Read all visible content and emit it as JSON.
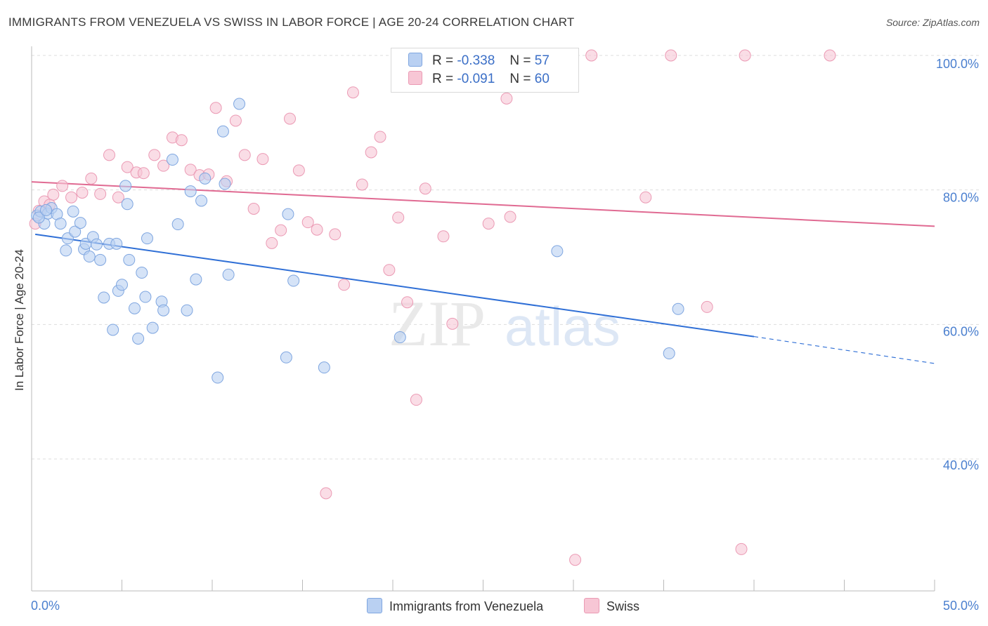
{
  "title": "IMMIGRANTS FROM VENEZUELA VS SWISS IN LABOR FORCE | AGE 20-24 CORRELATION CHART",
  "source": "Source: ZipAtlas.com",
  "watermark": {
    "zip": "ZIP",
    "atlas": "atlas"
  },
  "legend": {
    "r_label": "R =",
    "n_label": "N =",
    "rows": [
      {
        "r": "-0.338",
        "n": "57"
      },
      {
        "r": "-0.091",
        "n": "60"
      }
    ]
  },
  "colors": {
    "blue_fill": "#b9d0f2",
    "blue_stroke": "#7fa6e0",
    "blue_line": "#2f6fd6",
    "pink_fill": "#f7c6d5",
    "pink_stroke": "#eb9ab4",
    "pink_line": "#e06a92",
    "tick_text": "#4a7fcf",
    "grid": "#dddddd"
  },
  "chart_data": {
    "type": "scatter",
    "title": "IMMIGRANTS FROM VENEZUELA VS SWISS IN LABOR FORCE | AGE 20-24 CORRELATION CHART",
    "xlabel": "",
    "ylabel": "In Labor Force | Age 20-24",
    "xlim": [
      0,
      50
    ],
    "ylim": [
      22,
      102
    ],
    "x_tick_labels": [
      "0.0%",
      "50.0%"
    ],
    "y_ticks": [
      40,
      60,
      80,
      100
    ],
    "y_tick_labels": [
      "40.0%",
      "60.0%",
      "80.0%",
      "100.0%"
    ],
    "grid": "horizontal dashed",
    "legend_position": "top-center",
    "series": [
      {
        "name": "Immigrants from Venezuela",
        "color": "#b9d0f2",
        "trend": {
          "x1": 0.2,
          "y1": 73.4,
          "x2": 40,
          "y2": 58.2,
          "dash_to_x": 50,
          "dash_to_y": 54.2
        },
        "points": [
          [
            0.3,
            76.2
          ],
          [
            0.5,
            76.8
          ],
          [
            0.7,
            75.0
          ],
          [
            0.9,
            76.5
          ],
          [
            1.1,
            77.3
          ],
          [
            1.4,
            76.4
          ],
          [
            1.6,
            75.0
          ],
          [
            1.9,
            71.0
          ],
          [
            2.0,
            72.8
          ],
          [
            2.3,
            76.8
          ],
          [
            2.4,
            73.8
          ],
          [
            2.7,
            75.1
          ],
          [
            2.9,
            71.2
          ],
          [
            3.0,
            72.0
          ],
          [
            3.2,
            70.1
          ],
          [
            3.4,
            73.0
          ],
          [
            3.6,
            71.9
          ],
          [
            3.8,
            69.6
          ],
          [
            4.0,
            64.0
          ],
          [
            4.3,
            72.0
          ],
          [
            4.5,
            59.2
          ],
          [
            4.7,
            72.0
          ],
          [
            4.8,
            65.0
          ],
          [
            5.0,
            65.9
          ],
          [
            5.2,
            80.6
          ],
          [
            5.3,
            77.9
          ],
          [
            5.4,
            69.6
          ],
          [
            5.7,
            62.4
          ],
          [
            5.9,
            57.9
          ],
          [
            6.1,
            67.7
          ],
          [
            6.3,
            64.1
          ],
          [
            6.4,
            72.8
          ],
          [
            6.7,
            59.5
          ],
          [
            7.2,
            63.4
          ],
          [
            7.3,
            62.1
          ],
          [
            7.8,
            84.5
          ],
          [
            8.1,
            74.9
          ],
          [
            8.6,
            62.1
          ],
          [
            8.8,
            79.8
          ],
          [
            9.1,
            66.7
          ],
          [
            9.4,
            78.4
          ],
          [
            9.6,
            81.7
          ],
          [
            10.3,
            52.1
          ],
          [
            10.6,
            88.7
          ],
          [
            10.7,
            80.9
          ],
          [
            10.9,
            67.4
          ],
          [
            11.5,
            92.8
          ],
          [
            14.1,
            55.1
          ],
          [
            14.2,
            76.4
          ],
          [
            14.5,
            66.5
          ],
          [
            16.2,
            53.6
          ],
          [
            20.4,
            58.1
          ],
          [
            29.1,
            70.9
          ],
          [
            35.3,
            55.7
          ],
          [
            35.8,
            62.3
          ],
          [
            0.4,
            75.9
          ],
          [
            0.8,
            77.0
          ]
        ]
      },
      {
        "name": "Swiss",
        "color": "#f7c6d5",
        "trend": {
          "x1": 0,
          "y1": 81.2,
          "x2": 50,
          "y2": 74.6
        },
        "points": [
          [
            0.2,
            75.0
          ],
          [
            0.4,
            76.9
          ],
          [
            0.7,
            78.3
          ],
          [
            1.0,
            77.8
          ],
          [
            1.2,
            79.3
          ],
          [
            1.7,
            80.6
          ],
          [
            2.2,
            78.9
          ],
          [
            2.8,
            79.6
          ],
          [
            3.3,
            81.7
          ],
          [
            3.8,
            79.4
          ],
          [
            4.3,
            85.2
          ],
          [
            4.8,
            78.9
          ],
          [
            5.3,
            83.4
          ],
          [
            5.8,
            82.6
          ],
          [
            6.2,
            82.5
          ],
          [
            6.8,
            85.2
          ],
          [
            7.3,
            83.6
          ],
          [
            7.8,
            87.8
          ],
          [
            8.3,
            87.4
          ],
          [
            8.8,
            83.0
          ],
          [
            9.3,
            82.2
          ],
          [
            9.8,
            82.3
          ],
          [
            10.2,
            92.2
          ],
          [
            10.8,
            81.3
          ],
          [
            11.3,
            90.3
          ],
          [
            11.8,
            85.2
          ],
          [
            12.3,
            77.2
          ],
          [
            12.8,
            84.6
          ],
          [
            13.3,
            72.1
          ],
          [
            13.8,
            74.0
          ],
          [
            14.3,
            90.6
          ],
          [
            14.8,
            82.9
          ],
          [
            15.3,
            75.2
          ],
          [
            15.8,
            74.1
          ],
          [
            16.3,
            34.9
          ],
          [
            16.8,
            73.4
          ],
          [
            17.3,
            65.9
          ],
          [
            17.8,
            94.5
          ],
          [
            18.3,
            80.8
          ],
          [
            18.8,
            85.6
          ],
          [
            19.3,
            87.9
          ],
          [
            19.8,
            68.1
          ],
          [
            20.3,
            75.9
          ],
          [
            20.8,
            63.3
          ],
          [
            21.3,
            48.8
          ],
          [
            21.8,
            80.2
          ],
          [
            22.3,
            100.0
          ],
          [
            22.8,
            73.1
          ],
          [
            23.3,
            60.1
          ],
          [
            25.3,
            75.0
          ],
          [
            26.3,
            93.6
          ],
          [
            26.5,
            76.0
          ],
          [
            30.1,
            25.0
          ],
          [
            31.0,
            100.0
          ],
          [
            34.0,
            78.9
          ],
          [
            35.4,
            100.0
          ],
          [
            37.4,
            62.6
          ],
          [
            39.3,
            26.6
          ],
          [
            39.5,
            100.0
          ],
          [
            44.2,
            100.0
          ]
        ]
      }
    ]
  },
  "bottom_legend": {
    "items": [
      {
        "label": "Immigrants from Venezuela"
      },
      {
        "label": "Swiss"
      }
    ]
  }
}
